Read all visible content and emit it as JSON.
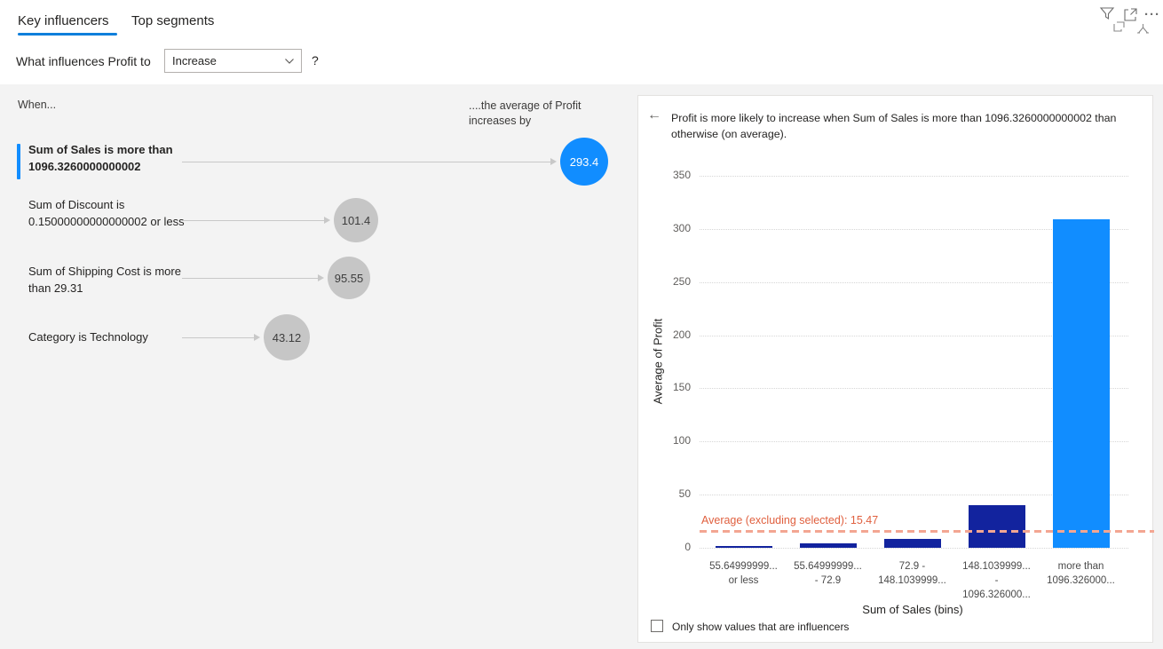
{
  "tabs": [
    {
      "label": "Key influencers",
      "active": true
    },
    {
      "label": "Top segments",
      "active": false
    }
  ],
  "question": {
    "prefix": "What influences Profit to",
    "dropdown_value": "Increase",
    "help": "?"
  },
  "toolbar_icons": [
    "filter-icon",
    "focus-mode-icon",
    "more-options-icon",
    "copy-visual-icon",
    "analyze-icon"
  ],
  "left_panel": {
    "when_label": "When...",
    "effect_label_line1": "....the average of Profit",
    "effect_label_line2": "increases by",
    "influencers": [
      {
        "text": "Sum of Sales is more than 1096.3260000000002",
        "value": "293.4",
        "selected": true
      },
      {
        "text": "Sum of Discount is 0.15000000000000002 or less",
        "value": "101.4",
        "selected": false
      },
      {
        "text": "Sum of Shipping Cost is more than 29.31",
        "value": "95.55",
        "selected": false
      },
      {
        "text": "Category is Technology",
        "value": "43.12",
        "selected": false
      }
    ]
  },
  "right_panel": {
    "back_arrow": "←",
    "title": "Profit is more likely to increase when Sum of Sales is more than 1096.3260000000002 than otherwise (on average).",
    "checkbox_label": "Only show values that are influencers",
    "checkbox_checked": false
  },
  "chart_data": {
    "type": "bar",
    "title": "",
    "xlabel": "Sum of Sales (bins)",
    "ylabel": "Average of Profit",
    "categories": [
      [
        "55.64999999...",
        "or less"
      ],
      [
        "55.64999999...",
        "- 72.9"
      ],
      [
        "72.9 -",
        "148.1039999..."
      ],
      [
        "148.1039999...",
        "-",
        "1096.326000..."
      ],
      [
        "more than",
        "1096.326000..."
      ]
    ],
    "values": [
      2,
      4,
      8,
      40,
      308.87
    ],
    "bar_colors": [
      "#12239E",
      "#12239E",
      "#12239E",
      "#12239E",
      "#118DFF"
    ],
    "ylim": [
      0,
      350
    ],
    "yticks": [
      0,
      50,
      100,
      150,
      200,
      250,
      300,
      350
    ],
    "grid": "dotted horizontal",
    "legend": "none",
    "reference_line": {
      "label": "Average (excluding selected): 15.47",
      "value": 15.47,
      "color": "#e0603f"
    }
  },
  "colors": {
    "accent_blue": "#0f7fdb",
    "selected_blue": "#118DFF",
    "dark_bar_blue": "#12239E",
    "bubble_gray": "#c6c6c6",
    "panel_gray": "#f3f3f3",
    "ref_dash": "#f3a692"
  }
}
